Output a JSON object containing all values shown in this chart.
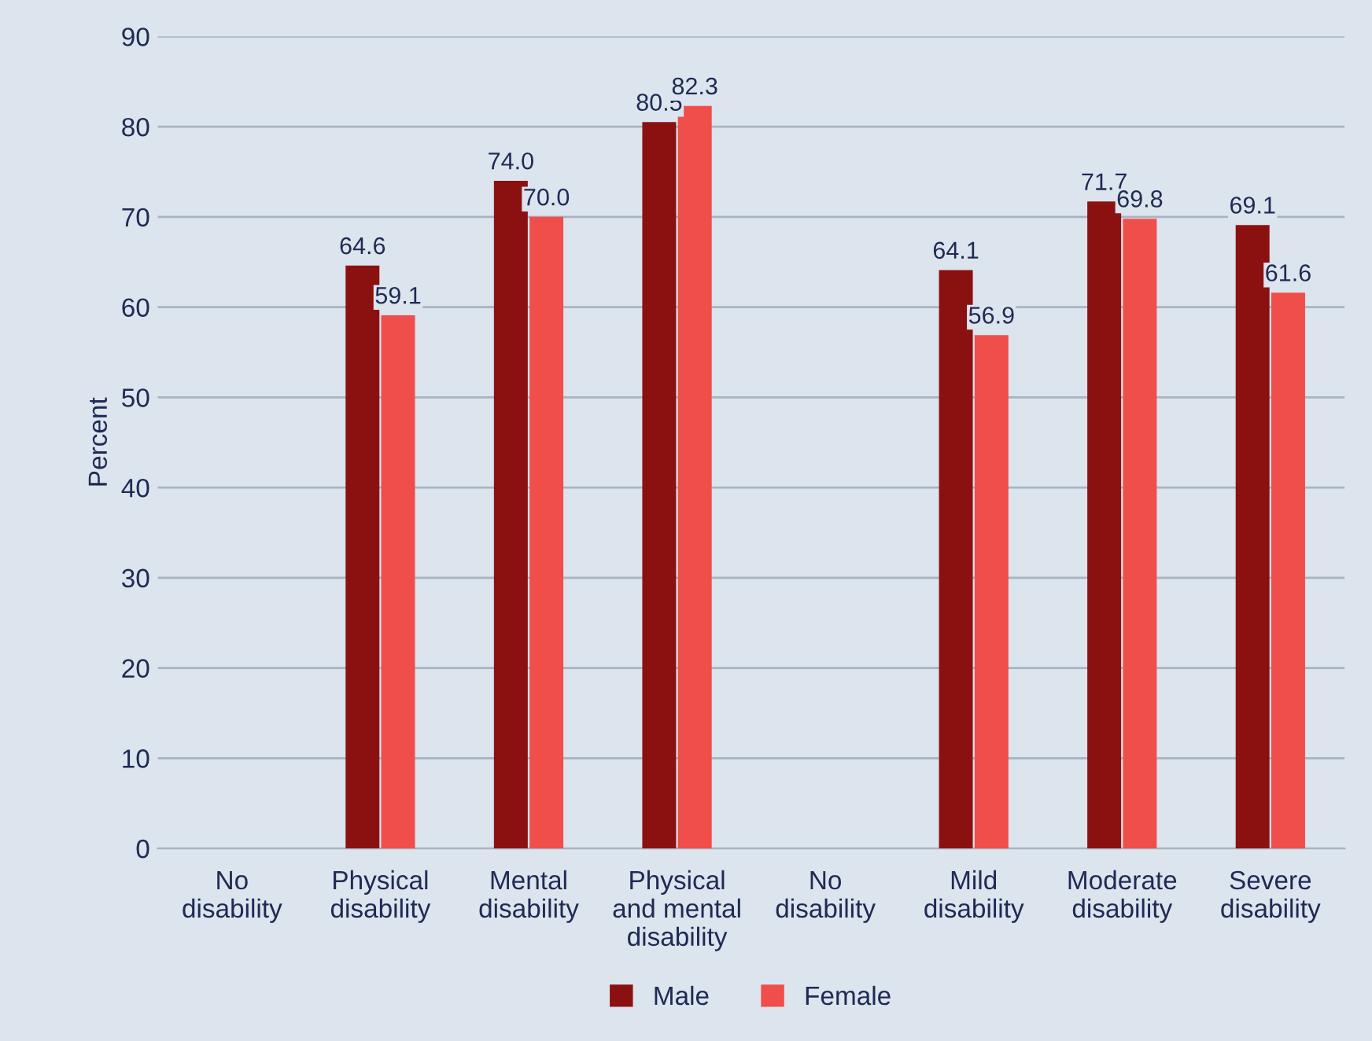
{
  "chart_data": {
    "type": "bar",
    "ylabel": "Percent",
    "categories": [
      "No\ndisability",
      "Physical\ndisability",
      "Mental\ndisability",
      "Physical\nand mental\ndisability",
      "No\ndisability",
      "Mild\ndisability",
      "Moderate\ndisability",
      "Severe\ndisability"
    ],
    "series": [
      {
        "name": "Male",
        "color": "#8b1111",
        "values": [
          null,
          64.6,
          74.0,
          80.5,
          null,
          64.1,
          71.7,
          69.1
        ],
        "value_labels": [
          null,
          "64.6",
          "74.0",
          "80.5",
          null,
          "64.1",
          "71.7",
          "69.1"
        ]
      },
      {
        "name": "Female",
        "color": "#f04e4a",
        "values": [
          null,
          59.1,
          70.0,
          82.3,
          null,
          56.9,
          69.8,
          61.6
        ],
        "value_labels": [
          null,
          "59.1",
          "70.0",
          "82.3",
          null,
          "56.9",
          "69.8",
          "61.6"
        ]
      }
    ],
    "ylim": [
      0,
      90
    ],
    "yticks": [
      0,
      10,
      20,
      30,
      40,
      50,
      60,
      70,
      80,
      90
    ],
    "grid": "y",
    "legend": "bottom"
  }
}
